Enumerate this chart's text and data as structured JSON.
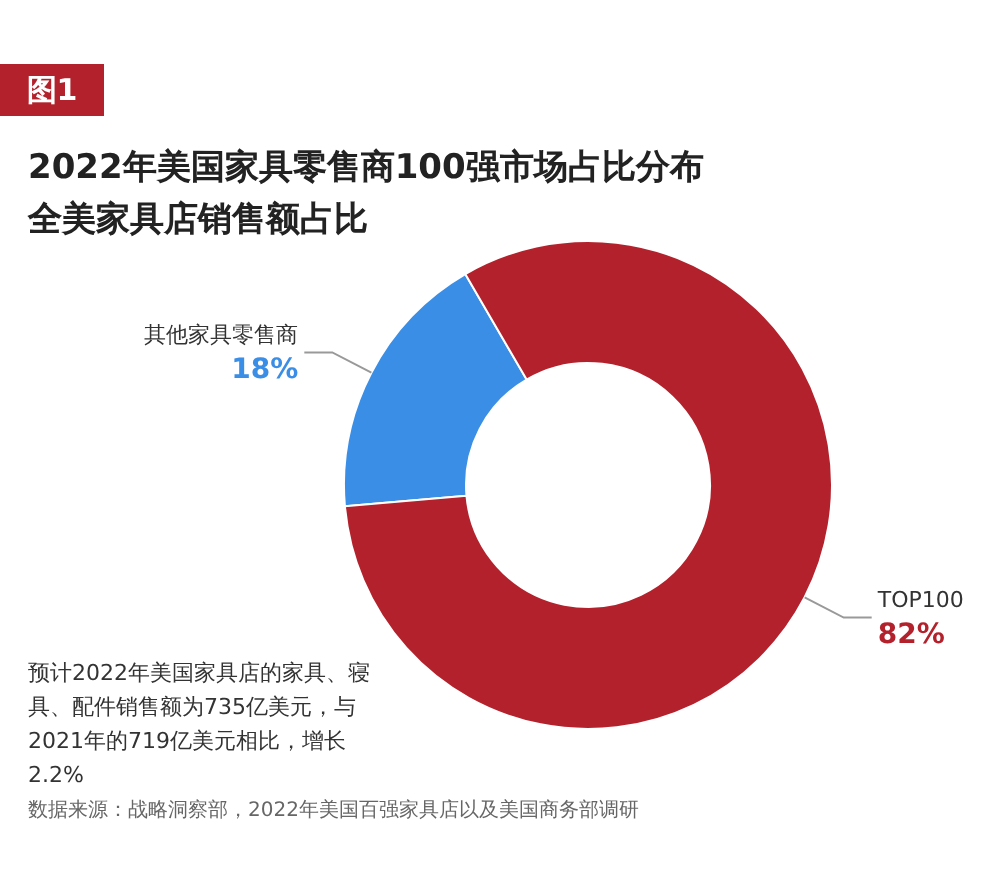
{
  "chart_data": {
    "type": "donut",
    "title": "2022年美国家具零售商100强市场占比分布",
    "subtitle": "全美家具店销售额占比",
    "categories": [
      "其他家具零售商",
      "TOP100"
    ],
    "values": [
      18,
      82
    ],
    "value_labels": [
      "18%",
      "82%"
    ],
    "colors": [
      "#3a8ee6",
      "#b3222c"
    ],
    "legend": false,
    "annotations": [
      "图1",
      "预计2022年美国家具店的家具、寝具、配件销售额为735亿美元，与2021年的719亿美元相比，增长2.2%",
      "数据来源：战略洞察部，2022年美国百强家具店以及美国商务部调研"
    ]
  }
}
